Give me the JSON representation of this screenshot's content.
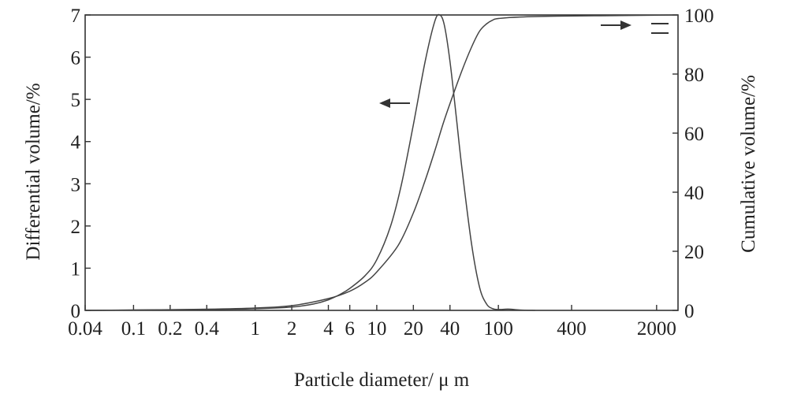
{
  "chart_data": {
    "type": "line",
    "xlabel": "Particle diameter/ μ m",
    "ylabel_left": "Differential volume/%",
    "ylabel_right": "Cumulative volume/%",
    "xscale": "log",
    "xlim": [
      0.04,
      3000
    ],
    "ylim_left": [
      0,
      7
    ],
    "ylim_right": [
      0,
      100
    ],
    "x_ticks": [
      {
        "value": 0.04,
        "label": "0.04"
      },
      {
        "value": 0.1,
        "label": "0.1"
      },
      {
        "value": 0.2,
        "label": "0.2"
      },
      {
        "value": 0.4,
        "label": "0.4"
      },
      {
        "value": 1,
        "label": "1"
      },
      {
        "value": 2,
        "label": "2"
      },
      {
        "value": 4,
        "label": "4"
      },
      {
        "value": 6,
        "label": "6"
      },
      {
        "value": 10,
        "label": "10"
      },
      {
        "value": 20,
        "label": "20"
      },
      {
        "value": 40,
        "label": "40"
      },
      {
        "value": 100,
        "label": "100"
      },
      {
        "value": 400,
        "label": "400"
      },
      {
        "value": 2000,
        "label": "2000"
      }
    ],
    "y_left_ticks": [
      0,
      1,
      2,
      3,
      4,
      5,
      6,
      7
    ],
    "y_right_ticks": [
      0,
      20,
      40,
      60,
      80,
      100
    ],
    "series": [
      {
        "axis": "left",
        "x": [
          0.04,
          0.1,
          0.4,
          1,
          2,
          3,
          4,
          5,
          6,
          8,
          10,
          13,
          16,
          20,
          25,
          30,
          33,
          36,
          40,
          45,
          50,
          60,
          70,
          80,
          90,
          100,
          120,
          150,
          200
        ],
        "y": [
          0,
          0.01,
          0.02,
          0.04,
          0.08,
          0.15,
          0.25,
          0.38,
          0.52,
          0.82,
          1.2,
          2.0,
          3.0,
          4.4,
          5.9,
          6.85,
          7.0,
          6.75,
          5.9,
          4.6,
          3.4,
          1.6,
          0.55,
          0.15,
          0.04,
          0.02,
          0.03,
          0.01,
          0
        ]
      },
      {
        "axis": "right",
        "x": [
          0.04,
          0.1,
          0.4,
          1,
          2,
          4,
          6,
          8,
          10,
          15,
          20,
          25,
          30,
          35,
          40,
          50,
          60,
          70,
          80,
          90,
          100,
          150,
          300,
          1000,
          3000
        ],
        "y": [
          0,
          0.1,
          0.4,
          0.8,
          1.6,
          4,
          6.5,
          9.5,
          13,
          22,
          33,
          44,
          54,
          63,
          70,
          81,
          89,
          94.5,
          97,
          98.3,
          98.8,
          99.3,
          99.6,
          99.8,
          100
        ]
      }
    ],
    "annotations": [
      "arrow-left-pointing-to-left-axis",
      "arrow-right-pointing-to-right-axis"
    ]
  }
}
